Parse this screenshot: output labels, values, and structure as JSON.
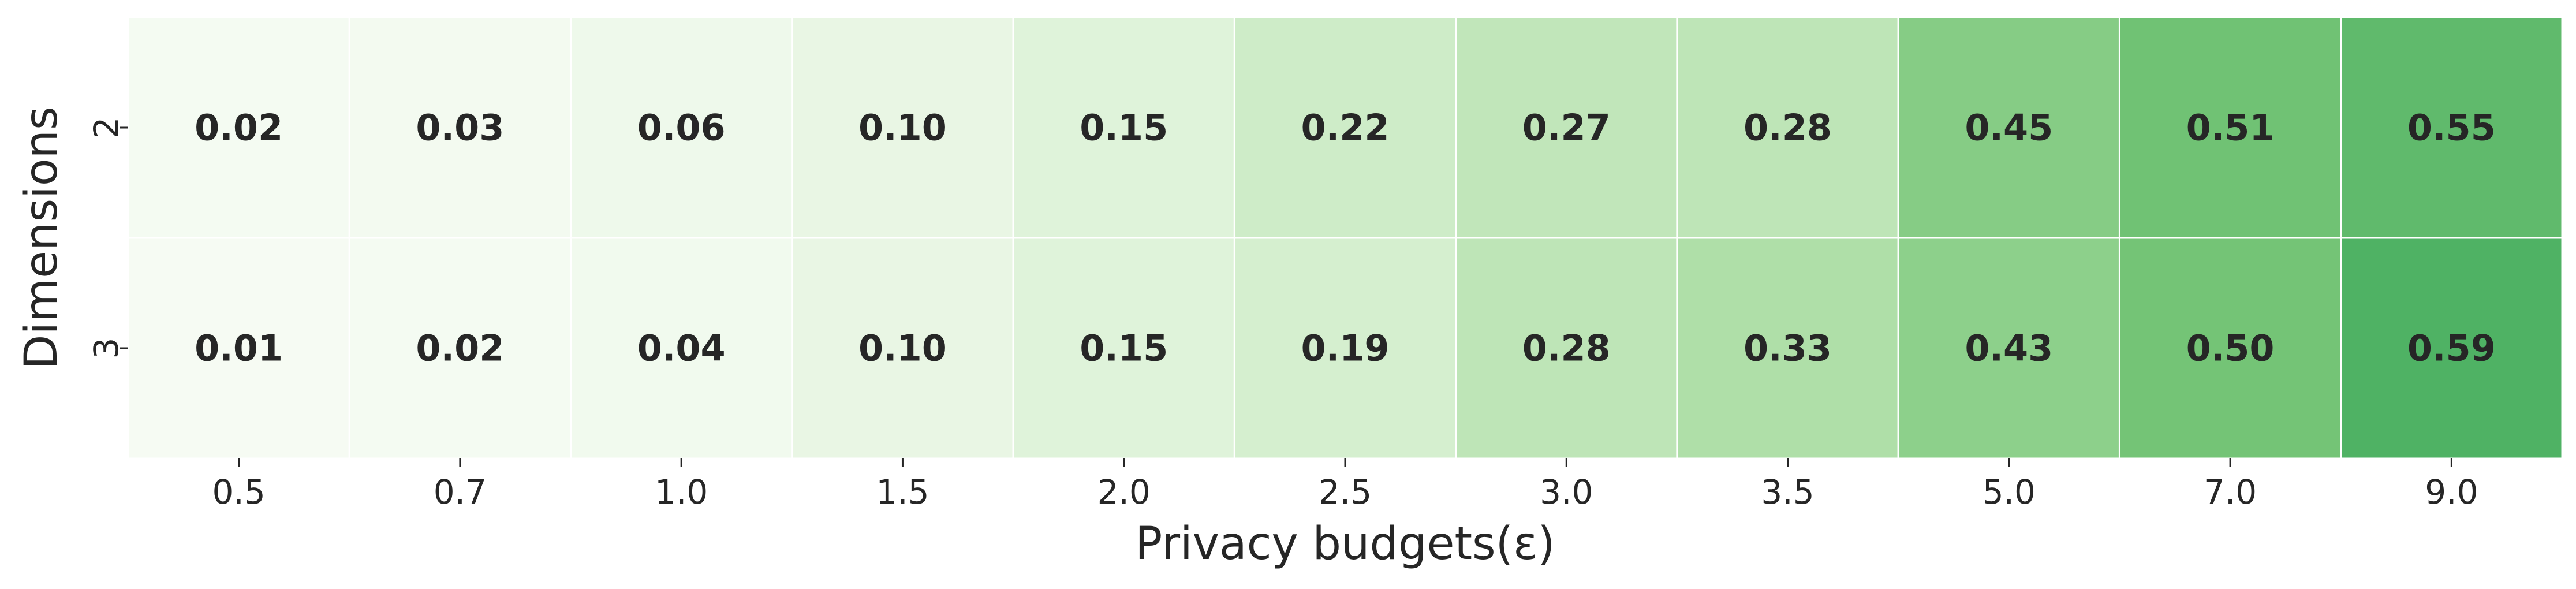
{
  "chart_data": {
    "type": "heatmap",
    "xlabel": "Privacy budgets(ε)",
    "ylabel": "Dimensions",
    "x_categories": [
      "0.5",
      "0.7",
      "1.0",
      "1.5",
      "2.0",
      "2.5",
      "3.0",
      "3.5",
      "5.0",
      "7.0",
      "9.0"
    ],
    "y_categories": [
      "2",
      "3"
    ],
    "values": [
      [
        0.02,
        0.03,
        0.06,
        0.1,
        0.15,
        0.22,
        0.27,
        0.28,
        0.45,
        0.51,
        0.55
      ],
      [
        0.01,
        0.02,
        0.04,
        0.1,
        0.15,
        0.19,
        0.28,
        0.33,
        0.43,
        0.5,
        0.59
      ]
    ],
    "value_labels": [
      [
        "0.02",
        "0.03",
        "0.06",
        "0.10",
        "0.15",
        "0.22",
        "0.27",
        "0.28",
        "0.45",
        "0.51",
        "0.55"
      ],
      [
        "0.01",
        "0.02",
        "0.04",
        "0.10",
        "0.15",
        "0.19",
        "0.28",
        "0.33",
        "0.43",
        "0.50",
        "0.59"
      ]
    ],
    "colormap": "Greens",
    "color_range": [
      0,
      1
    ],
    "grid_line_color": "#ffffff",
    "dark_text_color": "#262626",
    "light_text_color": "#ffffff",
    "colorbar": false
  }
}
